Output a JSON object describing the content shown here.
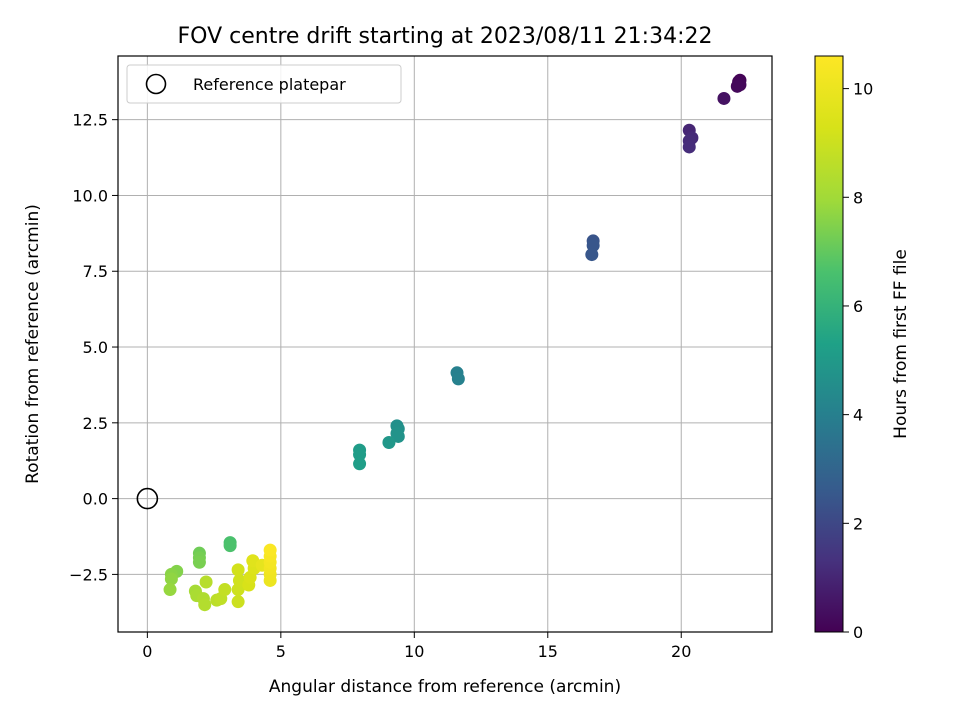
{
  "chart_data": {
    "type": "scatter",
    "title": "FOV centre drift starting at 2023/08/11 21:34:22",
    "xlabel": "Angular distance from reference (arcmin)",
    "ylabel": "Rotation from reference (arcmin)",
    "xlim": [
      -1.1,
      23.4
    ],
    "ylim": [
      -4.4,
      14.6
    ],
    "xticks": [
      0,
      5,
      10,
      15,
      20
    ],
    "yticks": [
      -2.5,
      0.0,
      2.5,
      5.0,
      7.5,
      10.0,
      12.5
    ],
    "xtick_labels": [
      "0",
      "5",
      "10",
      "15",
      "20"
    ],
    "ytick_labels": [
      "−2.5",
      "0.0",
      "2.5",
      "5.0",
      "7.5",
      "10.0",
      "12.5"
    ],
    "grid": true,
    "legend": {
      "placement": "upper-left",
      "entries": [
        "Reference platepar"
      ]
    },
    "reference_point": {
      "x": 0,
      "y": 0
    },
    "colorbar": {
      "label": "Hours from first FF file",
      "range": [
        0,
        10.6
      ],
      "ticks": [
        0,
        2,
        4,
        6,
        8,
        10
      ],
      "tick_labels": [
        "0",
        "2",
        "4",
        "6",
        "8",
        "10"
      ],
      "colormap": "viridis"
    },
    "points": [
      {
        "x": 22.2,
        "y": 13.8,
        "c": 0.05
      },
      {
        "x": 22.15,
        "y": 13.75,
        "c": 0.1
      },
      {
        "x": 22.2,
        "y": 13.65,
        "c": 0.15
      },
      {
        "x": 22.1,
        "y": 13.6,
        "c": 0.2
      },
      {
        "x": 21.6,
        "y": 13.2,
        "c": 0.45
      },
      {
        "x": 20.3,
        "y": 12.15,
        "c": 1.0
      },
      {
        "x": 20.4,
        "y": 11.9,
        "c": 1.1
      },
      {
        "x": 20.3,
        "y": 11.8,
        "c": 1.15
      },
      {
        "x": 20.3,
        "y": 11.6,
        "c": 1.2
      },
      {
        "x": 16.7,
        "y": 8.5,
        "c": 2.4
      },
      {
        "x": 16.7,
        "y": 8.35,
        "c": 2.45
      },
      {
        "x": 16.65,
        "y": 8.05,
        "c": 2.5
      },
      {
        "x": 11.6,
        "y": 4.15,
        "c": 4.0
      },
      {
        "x": 11.65,
        "y": 3.95,
        "c": 4.05
      },
      {
        "x": 9.35,
        "y": 2.4,
        "c": 4.6
      },
      {
        "x": 9.4,
        "y": 2.3,
        "c": 4.65
      },
      {
        "x": 9.35,
        "y": 2.15,
        "c": 4.7
      },
      {
        "x": 9.4,
        "y": 2.05,
        "c": 4.75
      },
      {
        "x": 9.05,
        "y": 1.85,
        "c": 4.9
      },
      {
        "x": 7.95,
        "y": 1.6,
        "c": 5.1
      },
      {
        "x": 7.95,
        "y": 1.45,
        "c": 5.15
      },
      {
        "x": 7.95,
        "y": 1.15,
        "c": 5.2
      },
      {
        "x": 3.1,
        "y": -1.45,
        "c": 6.6
      },
      {
        "x": 3.1,
        "y": -1.55,
        "c": 6.65
      },
      {
        "x": 1.95,
        "y": -1.8,
        "c": 7.2
      },
      {
        "x": 1.95,
        "y": -1.95,
        "c": 7.3
      },
      {
        "x": 1.95,
        "y": -2.1,
        "c": 7.35
      },
      {
        "x": 1.1,
        "y": -2.4,
        "c": 7.5
      },
      {
        "x": 0.9,
        "y": -2.5,
        "c": 7.6
      },
      {
        "x": 0.9,
        "y": -2.65,
        "c": 7.7
      },
      {
        "x": 0.85,
        "y": -3.0,
        "c": 7.8
      },
      {
        "x": 1.8,
        "y": -3.05,
        "c": 8.1
      },
      {
        "x": 1.85,
        "y": -3.2,
        "c": 8.2
      },
      {
        "x": 2.1,
        "y": -3.3,
        "c": 8.3
      },
      {
        "x": 2.15,
        "y": -3.5,
        "c": 8.4
      },
      {
        "x": 2.2,
        "y": -2.75,
        "c": 8.5
      },
      {
        "x": 2.6,
        "y": -3.35,
        "c": 8.6
      },
      {
        "x": 2.75,
        "y": -3.3,
        "c": 8.7
      },
      {
        "x": 2.9,
        "y": -3.0,
        "c": 8.8
      },
      {
        "x": 3.4,
        "y": -3.4,
        "c": 9.0
      },
      {
        "x": 3.4,
        "y": -3.0,
        "c": 9.05
      },
      {
        "x": 3.45,
        "y": -2.7,
        "c": 9.1
      },
      {
        "x": 3.4,
        "y": -2.35,
        "c": 9.15
      },
      {
        "x": 3.8,
        "y": -2.85,
        "c": 9.3
      },
      {
        "x": 3.85,
        "y": -2.6,
        "c": 9.4
      },
      {
        "x": 4.0,
        "y": -2.3,
        "c": 9.5
      },
      {
        "x": 3.95,
        "y": -2.05,
        "c": 9.6
      },
      {
        "x": 4.3,
        "y": -2.2,
        "c": 9.8
      },
      {
        "x": 4.6,
        "y": -2.7,
        "c": 10.0
      },
      {
        "x": 4.6,
        "y": -2.5,
        "c": 10.1
      },
      {
        "x": 4.6,
        "y": -2.3,
        "c": 10.2
      },
      {
        "x": 4.6,
        "y": -2.1,
        "c": 10.3
      },
      {
        "x": 4.6,
        "y": -1.9,
        "c": 10.4
      },
      {
        "x": 4.6,
        "y": -1.7,
        "c": 10.5
      }
    ]
  }
}
